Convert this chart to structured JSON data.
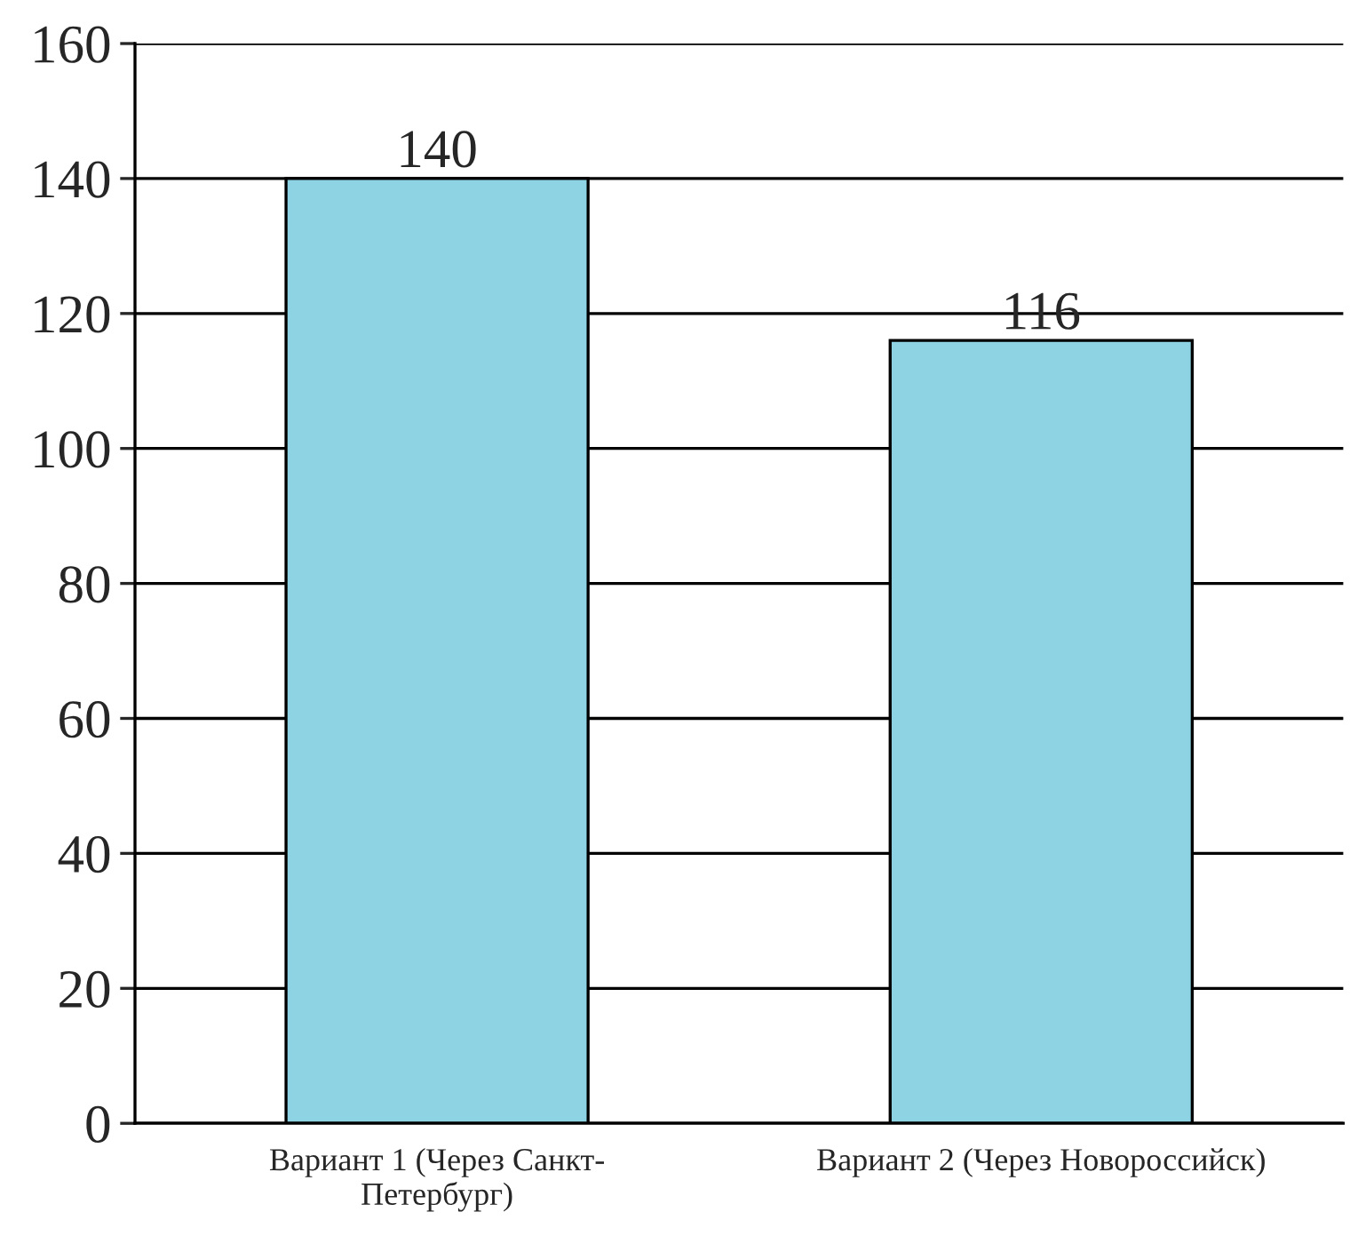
{
  "chart_data": {
    "type": "bar",
    "categories": [
      "Вариант 1 (Через Санкт-Петербург)",
      "Вариант 2 (Через Новороссийск)"
    ],
    "values": [
      140,
      116
    ],
    "color": "#8dd3e3",
    "ylim": [
      0,
      160
    ],
    "yticks": [
      0,
      20,
      40,
      60,
      80,
      100,
      120,
      140,
      160
    ],
    "grid": "y",
    "data_labels": true
  }
}
